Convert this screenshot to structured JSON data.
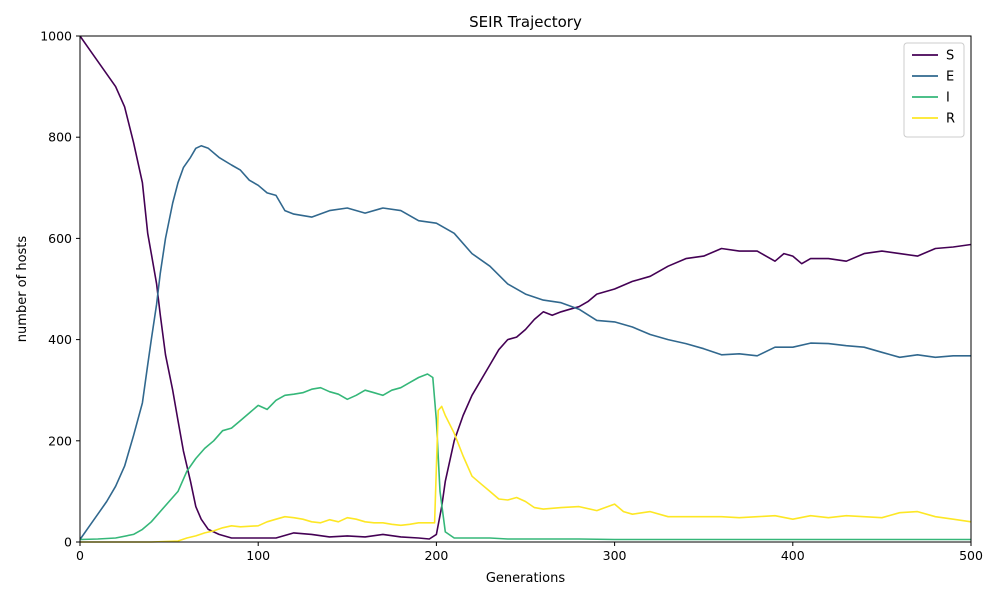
{
  "chart_data": {
    "type": "line",
    "title": "SEIR Trajectory",
    "xlabel": "Generations",
    "ylabel": "number of hosts",
    "xlim": [
      0,
      500
    ],
    "ylim": [
      0,
      1000
    ],
    "xticks": [
      0,
      100,
      200,
      300,
      400,
      500
    ],
    "yticks": [
      0,
      200,
      400,
      600,
      800,
      1000
    ],
    "grid": false,
    "legend_position": "top-right",
    "series": [
      {
        "name": "S",
        "color": "#440154",
        "points": [
          [
            0,
            1000
          ],
          [
            5,
            975
          ],
          [
            10,
            950
          ],
          [
            15,
            925
          ],
          [
            20,
            900
          ],
          [
            25,
            860
          ],
          [
            30,
            790
          ],
          [
            35,
            710
          ],
          [
            38,
            610
          ],
          [
            40,
            570
          ],
          [
            43,
            510
          ],
          [
            45,
            450
          ],
          [
            48,
            370
          ],
          [
            52,
            300
          ],
          [
            55,
            240
          ],
          [
            58,
            180
          ],
          [
            62,
            120
          ],
          [
            65,
            70
          ],
          [
            68,
            45
          ],
          [
            72,
            25
          ],
          [
            78,
            15
          ],
          [
            85,
            8
          ],
          [
            95,
            8
          ],
          [
            110,
            8
          ],
          [
            120,
            18
          ],
          [
            130,
            15
          ],
          [
            140,
            10
          ],
          [
            150,
            12
          ],
          [
            160,
            10
          ],
          [
            170,
            15
          ],
          [
            180,
            10
          ],
          [
            190,
            8
          ],
          [
            196,
            6
          ],
          [
            200,
            15
          ],
          [
            203,
            70
          ],
          [
            205,
            120
          ],
          [
            210,
            200
          ],
          [
            215,
            250
          ],
          [
            220,
            290
          ],
          [
            230,
            350
          ],
          [
            235,
            380
          ],
          [
            240,
            400
          ],
          [
            245,
            405
          ],
          [
            250,
            420
          ],
          [
            255,
            440
          ],
          [
            260,
            455
          ],
          [
            265,
            448
          ],
          [
            270,
            455
          ],
          [
            275,
            460
          ],
          [
            280,
            465
          ],
          [
            285,
            475
          ],
          [
            290,
            490
          ],
          [
            300,
            500
          ],
          [
            310,
            515
          ],
          [
            320,
            525
          ],
          [
            330,
            545
          ],
          [
            340,
            560
          ],
          [
            350,
            565
          ],
          [
            360,
            580
          ],
          [
            370,
            575
          ],
          [
            380,
            575
          ],
          [
            390,
            555
          ],
          [
            395,
            570
          ],
          [
            400,
            565
          ],
          [
            405,
            550
          ],
          [
            410,
            560
          ],
          [
            420,
            560
          ],
          [
            430,
            555
          ],
          [
            440,
            570
          ],
          [
            450,
            575
          ],
          [
            460,
            570
          ],
          [
            470,
            565
          ],
          [
            480,
            580
          ],
          [
            490,
            583
          ],
          [
            500,
            588
          ]
        ]
      },
      {
        "name": "E",
        "color": "#31688e",
        "points": [
          [
            0,
            5
          ],
          [
            5,
            30
          ],
          [
            10,
            55
          ],
          [
            15,
            80
          ],
          [
            20,
            110
          ],
          [
            25,
            150
          ],
          [
            30,
            210
          ],
          [
            35,
            275
          ],
          [
            38,
            350
          ],
          [
            40,
            400
          ],
          [
            43,
            470
          ],
          [
            45,
            530
          ],
          [
            48,
            600
          ],
          [
            52,
            670
          ],
          [
            55,
            710
          ],
          [
            58,
            740
          ],
          [
            62,
            760
          ],
          [
            65,
            778
          ],
          [
            68,
            783
          ],
          [
            72,
            778
          ],
          [
            78,
            760
          ],
          [
            85,
            745
          ],
          [
            90,
            735
          ],
          [
            95,
            715
          ],
          [
            100,
            705
          ],
          [
            105,
            690
          ],
          [
            110,
            685
          ],
          [
            115,
            655
          ],
          [
            120,
            648
          ],
          [
            130,
            642
          ],
          [
            140,
            655
          ],
          [
            150,
            660
          ],
          [
            160,
            650
          ],
          [
            170,
            660
          ],
          [
            180,
            655
          ],
          [
            190,
            635
          ],
          [
            200,
            630
          ],
          [
            210,
            610
          ],
          [
            220,
            570
          ],
          [
            230,
            545
          ],
          [
            240,
            510
          ],
          [
            250,
            490
          ],
          [
            260,
            478
          ],
          [
            270,
            473
          ],
          [
            280,
            460
          ],
          [
            290,
            438
          ],
          [
            300,
            435
          ],
          [
            310,
            425
          ],
          [
            320,
            410
          ],
          [
            330,
            400
          ],
          [
            340,
            392
          ],
          [
            350,
            382
          ],
          [
            360,
            370
          ],
          [
            370,
            372
          ],
          [
            380,
            368
          ],
          [
            390,
            385
          ],
          [
            400,
            385
          ],
          [
            410,
            393
          ],
          [
            420,
            392
          ],
          [
            430,
            388
          ],
          [
            440,
            385
          ],
          [
            450,
            375
          ],
          [
            460,
            365
          ],
          [
            470,
            370
          ],
          [
            480,
            365
          ],
          [
            490,
            368
          ],
          [
            500,
            368
          ]
        ]
      },
      {
        "name": "I",
        "color": "#35b779",
        "points": [
          [
            0,
            5
          ],
          [
            10,
            6
          ],
          [
            20,
            8
          ],
          [
            30,
            15
          ],
          [
            35,
            25
          ],
          [
            40,
            40
          ],
          [
            45,
            60
          ],
          [
            50,
            80
          ],
          [
            55,
            100
          ],
          [
            60,
            140
          ],
          [
            65,
            165
          ],
          [
            70,
            185
          ],
          [
            75,
            200
          ],
          [
            80,
            220
          ],
          [
            85,
            225
          ],
          [
            90,
            240
          ],
          [
            95,
            255
          ],
          [
            100,
            270
          ],
          [
            105,
            262
          ],
          [
            110,
            280
          ],
          [
            115,
            290
          ],
          [
            120,
            292
          ],
          [
            125,
            295
          ],
          [
            130,
            302
          ],
          [
            135,
            305
          ],
          [
            140,
            297
          ],
          [
            145,
            292
          ],
          [
            150,
            282
          ],
          [
            155,
            290
          ],
          [
            160,
            300
          ],
          [
            165,
            295
          ],
          [
            170,
            290
          ],
          [
            175,
            300
          ],
          [
            180,
            305
          ],
          [
            185,
            315
          ],
          [
            190,
            325
          ],
          [
            195,
            332
          ],
          [
            198,
            325
          ],
          [
            200,
            240
          ],
          [
            202,
            100
          ],
          [
            205,
            20
          ],
          [
            210,
            8
          ],
          [
            220,
            8
          ],
          [
            230,
            8
          ],
          [
            240,
            6
          ],
          [
            260,
            6
          ],
          [
            280,
            6
          ],
          [
            300,
            5
          ],
          [
            350,
            5
          ],
          [
            400,
            5
          ],
          [
            450,
            5
          ],
          [
            500,
            5
          ]
        ]
      },
      {
        "name": "R",
        "color": "#fde725",
        "points": [
          [
            0,
            0
          ],
          [
            20,
            0
          ],
          [
            40,
            0
          ],
          [
            55,
            2
          ],
          [
            60,
            8
          ],
          [
            65,
            12
          ],
          [
            70,
            18
          ],
          [
            75,
            22
          ],
          [
            80,
            28
          ],
          [
            85,
            32
          ],
          [
            90,
            30
          ],
          [
            100,
            32
          ],
          [
            105,
            40
          ],
          [
            110,
            45
          ],
          [
            115,
            50
          ],
          [
            120,
            48
          ],
          [
            125,
            45
          ],
          [
            130,
            40
          ],
          [
            135,
            38
          ],
          [
            140,
            44
          ],
          [
            145,
            40
          ],
          [
            150,
            48
          ],
          [
            155,
            45
          ],
          [
            160,
            40
          ],
          [
            165,
            38
          ],
          [
            170,
            38
          ],
          [
            175,
            35
          ],
          [
            180,
            33
          ],
          [
            185,
            35
          ],
          [
            190,
            38
          ],
          [
            195,
            38
          ],
          [
            199,
            38
          ],
          [
            201,
            260
          ],
          [
            203,
            268
          ],
          [
            205,
            250
          ],
          [
            210,
            215
          ],
          [
            215,
            170
          ],
          [
            220,
            130
          ],
          [
            225,
            115
          ],
          [
            230,
            100
          ],
          [
            235,
            85
          ],
          [
            240,
            83
          ],
          [
            245,
            88
          ],
          [
            250,
            80
          ],
          [
            255,
            68
          ],
          [
            260,
            65
          ],
          [
            270,
            68
          ],
          [
            280,
            70
          ],
          [
            290,
            62
          ],
          [
            300,
            75
          ],
          [
            305,
            60
          ],
          [
            310,
            55
          ],
          [
            320,
            60
          ],
          [
            330,
            50
          ],
          [
            340,
            50
          ],
          [
            350,
            50
          ],
          [
            360,
            50
          ],
          [
            370,
            48
          ],
          [
            380,
            50
          ],
          [
            390,
            52
          ],
          [
            400,
            45
          ],
          [
            410,
            52
          ],
          [
            420,
            48
          ],
          [
            430,
            52
          ],
          [
            440,
            50
          ],
          [
            450,
            48
          ],
          [
            460,
            58
          ],
          [
            470,
            60
          ],
          [
            480,
            50
          ],
          [
            490,
            45
          ],
          [
            500,
            40
          ]
        ]
      }
    ]
  }
}
